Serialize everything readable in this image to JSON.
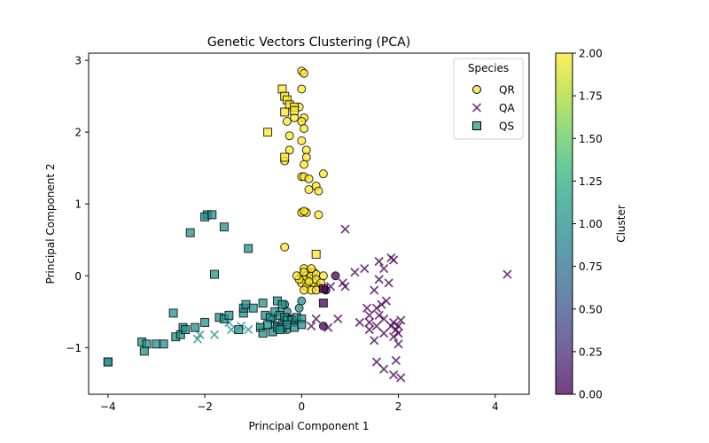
{
  "chart_data": {
    "type": "scatter",
    "title": "Genetic Vectors Clustering (PCA)",
    "xlabel": "Principal Component 1",
    "ylabel": "Principal Component 2",
    "xlim": [
      -4.4,
      4.7
    ],
    "ylim": [
      -1.65,
      3.1
    ],
    "xticks": [
      -4,
      -2,
      0,
      2,
      4
    ],
    "yticks": [
      -1,
      0,
      1,
      2,
      3
    ],
    "grid": false,
    "legend": {
      "title": "Species",
      "placement": "top-right",
      "entries": [
        "QR",
        "QA",
        "QS"
      ]
    },
    "colorbar": {
      "label": "Cluster",
      "range": [
        0,
        2
      ],
      "ticks": [
        "0.00",
        "0.25",
        "0.50",
        "0.75",
        "1.00",
        "1.25",
        "1.50",
        "1.75",
        "2.00"
      ],
      "colormap": [
        "#440154",
        "#482878",
        "#3e4a89",
        "#31688e",
        "#26828e",
        "#1f9e89",
        "#35b779",
        "#6ece58",
        "#b5de2b",
        "#fde725"
      ]
    },
    "series": [
      {
        "name": "QR",
        "marker": "circle",
        "points": [
          [
            0.0,
            2.85
          ],
          [
            0.05,
            2.82
          ],
          [
            0.0,
            2.6
          ],
          [
            -0.05,
            2.35
          ],
          [
            0.05,
            2.2
          ],
          [
            -0.15,
            2.2
          ],
          [
            0.0,
            2.15
          ],
          [
            -0.3,
            2.15
          ],
          [
            0.05,
            2.05
          ],
          [
            -0.25,
            1.95
          ],
          [
            0.0,
            1.88
          ],
          [
            0.1,
            1.75
          ],
          [
            -0.25,
            1.75
          ],
          [
            0.1,
            1.65
          ],
          [
            0.05,
            1.55
          ],
          [
            -0.35,
            1.6
          ],
          [
            0.0,
            1.38
          ],
          [
            0.05,
            1.38
          ],
          [
            0.15,
            1.35
          ],
          [
            0.45,
            1.42
          ],
          [
            0.3,
            1.25
          ],
          [
            0.15,
            1.2
          ],
          [
            0.35,
            1.18
          ],
          [
            0.0,
            0.88
          ],
          [
            0.1,
            0.88
          ],
          [
            0.05,
            0.9
          ],
          [
            0.35,
            0.85
          ],
          [
            -0.35,
            0.4
          ],
          [
            0.05,
            0.1
          ],
          [
            0.15,
            0.05
          ],
          [
            0.25,
            0.05
          ],
          [
            0.0,
            0.0
          ],
          [
            0.1,
            0.0
          ],
          [
            0.2,
            0.0
          ],
          [
            0.3,
            0.02
          ],
          [
            0.05,
            -0.05
          ],
          [
            0.15,
            -0.1
          ],
          [
            0.25,
            -0.1
          ],
          [
            0.0,
            -0.1
          ],
          [
            0.1,
            -0.15
          ],
          [
            -0.05,
            -0.05
          ],
          [
            0.2,
            -0.2
          ],
          [
            0.35,
            -0.15
          ],
          [
            0.05,
            -0.2
          ],
          [
            0.3,
            -0.05
          ],
          [
            0.45,
            0.0
          ],
          [
            0.4,
            -0.1
          ],
          [
            -0.1,
            0.0
          ],
          [
            0.05,
            0.05
          ],
          [
            0.2,
            0.1
          ],
          [
            0.3,
            -0.2
          ],
          [
            0.15,
            -0.08
          ],
          [
            -0.6,
            -0.6
          ],
          [
            -0.5,
            -0.7
          ],
          [
            -0.3,
            -0.5
          ],
          [
            -0.35,
            -0.4
          ],
          [
            -0.2,
            -0.6
          ],
          [
            -0.3,
            -0.75
          ],
          [
            -0.05,
            -0.45
          ],
          [
            -0.15,
            -0.65
          ],
          [
            -0.4,
            -0.65
          ],
          [
            0.0,
            -0.35
          ],
          [
            0.45,
            -0.7
          ],
          [
            0.7,
            0.0
          ],
          [
            0.5,
            -0.2
          ]
        ],
        "cluster": [
          2,
          2,
          2,
          2,
          2,
          2,
          2,
          2,
          2,
          2,
          2,
          2,
          2,
          2,
          2,
          2,
          2,
          2,
          2,
          2,
          2,
          2,
          2,
          2,
          2,
          2,
          2,
          2,
          2,
          2,
          2,
          2,
          2,
          2,
          2,
          2,
          2,
          2,
          2,
          2,
          2,
          2,
          2,
          2,
          2,
          2,
          2,
          2,
          2,
          2,
          2,
          2,
          1,
          1,
          1,
          1,
          1,
          1,
          1,
          1,
          1,
          1,
          0,
          0,
          0
        ]
      },
      {
        "name": "QA",
        "marker": "x",
        "points": [
          [
            0.9,
            0.65
          ],
          [
            4.25,
            0.02
          ],
          [
            1.85,
            0.25
          ],
          [
            1.9,
            0.22
          ],
          [
            1.6,
            0.2
          ],
          [
            1.3,
            0.1
          ],
          [
            1.1,
            0.05
          ],
          [
            1.7,
            0.1
          ],
          [
            1.6,
            -0.05
          ],
          [
            1.8,
            -0.1
          ],
          [
            0.85,
            -0.1
          ],
          [
            0.9,
            -0.15
          ],
          [
            0.6,
            -0.15
          ],
          [
            1.5,
            -0.2
          ],
          [
            1.75,
            -0.35
          ],
          [
            1.65,
            -0.4
          ],
          [
            1.55,
            -0.45
          ],
          [
            1.35,
            -0.45
          ],
          [
            1.4,
            -0.55
          ],
          [
            1.4,
            -0.65
          ],
          [
            1.6,
            -0.55
          ],
          [
            1.7,
            -0.6
          ],
          [
            1.85,
            -0.7
          ],
          [
            1.9,
            -0.65
          ],
          [
            2.0,
            -0.7
          ],
          [
            2.05,
            -0.62
          ],
          [
            1.95,
            -0.75
          ],
          [
            2.0,
            -0.8
          ],
          [
            1.9,
            -0.85
          ],
          [
            1.7,
            -0.8
          ],
          [
            1.55,
            -0.7
          ],
          [
            1.2,
            -0.65
          ],
          [
            1.5,
            -0.9
          ],
          [
            2.0,
            -0.95
          ],
          [
            1.55,
            -1.2
          ],
          [
            1.95,
            -1.18
          ],
          [
            1.7,
            -1.3
          ],
          [
            1.9,
            -1.38
          ],
          [
            2.05,
            -1.42
          ],
          [
            1.4,
            -0.75
          ],
          [
            0.75,
            -0.6
          ],
          [
            0.55,
            -0.72
          ],
          [
            0.3,
            -0.6
          ],
          [
            0.2,
            -0.7
          ],
          [
            -0.45,
            -0.5
          ],
          [
            -0.6,
            -0.7
          ],
          [
            -0.85,
            -0.7
          ],
          [
            -1.1,
            -0.75
          ],
          [
            -1.25,
            -0.7
          ],
          [
            -1.45,
            -0.75
          ],
          [
            -1.8,
            -0.82
          ],
          [
            -2.1,
            -0.82
          ],
          [
            -2.15,
            -0.88
          ],
          [
            -1.5,
            -0.65
          ]
        ],
        "cluster": [
          0,
          0,
          0,
          0,
          0,
          0,
          0,
          0,
          0,
          0,
          0,
          0,
          0,
          0,
          0,
          0,
          0,
          0,
          0,
          0,
          0,
          0,
          0,
          0,
          0,
          0,
          0,
          0,
          0,
          0,
          0,
          0,
          0,
          0,
          0,
          0,
          0,
          0,
          0,
          0,
          0,
          0,
          0,
          0,
          1,
          1,
          1,
          1,
          1,
          1,
          1,
          1,
          1,
          1
        ]
      },
      {
        "name": "QS",
        "marker": "square",
        "points": [
          [
            -0.4,
            2.6
          ],
          [
            -0.35,
            2.5
          ],
          [
            -0.3,
            2.45
          ],
          [
            -0.25,
            2.38
          ],
          [
            -0.15,
            2.35
          ],
          [
            -0.15,
            2.3
          ],
          [
            -0.35,
            2.28
          ],
          [
            -0.7,
            2.0
          ],
          [
            -0.35,
            1.65
          ],
          [
            0.3,
            0.3
          ],
          [
            0.45,
            -0.38
          ],
          [
            0.45,
            -0.18
          ],
          [
            -1.95,
            0.85
          ],
          [
            -2.0,
            0.82
          ],
          [
            -1.85,
            0.85
          ],
          [
            -1.6,
            0.68
          ],
          [
            -2.3,
            0.6
          ],
          [
            -1.1,
            0.38
          ],
          [
            -1.8,
            0.02
          ],
          [
            -4.0,
            -1.2
          ],
          [
            -4.0,
            -1.2
          ],
          [
            -3.3,
            -0.92
          ],
          [
            -3.2,
            -0.95
          ],
          [
            -3.25,
            -1.05
          ],
          [
            -3.0,
            -0.95
          ],
          [
            -2.85,
            -0.95
          ],
          [
            -2.6,
            -0.85
          ],
          [
            -2.5,
            -0.82
          ],
          [
            -2.45,
            -0.72
          ],
          [
            -2.2,
            -0.72
          ],
          [
            -2.4,
            -0.75
          ],
          [
            -2.65,
            -0.52
          ],
          [
            -2.0,
            -0.65
          ],
          [
            -1.7,
            -0.58
          ],
          [
            -1.6,
            -0.6
          ],
          [
            -1.5,
            -0.55
          ],
          [
            -1.3,
            -0.75
          ],
          [
            -1.2,
            -0.52
          ],
          [
            -1.2,
            -0.45
          ],
          [
            -1.15,
            -0.4
          ],
          [
            -1.0,
            -0.45
          ],
          [
            -0.8,
            -0.38
          ],
          [
            -0.5,
            -0.35
          ],
          [
            -0.4,
            -0.4
          ],
          [
            -0.75,
            -0.55
          ],
          [
            -0.65,
            -0.58
          ],
          [
            -0.55,
            -0.5
          ],
          [
            -0.45,
            -0.55
          ],
          [
            -0.35,
            -0.58
          ],
          [
            -0.3,
            -0.62
          ],
          [
            -0.2,
            -0.62
          ],
          [
            -0.1,
            -0.58
          ],
          [
            0.0,
            -0.6
          ],
          [
            -0.85,
            -0.72
          ],
          [
            -0.8,
            -0.8
          ],
          [
            -0.6,
            -0.78
          ],
          [
            -0.5,
            -0.72
          ],
          [
            -0.4,
            -0.72
          ],
          [
            -0.3,
            -0.68
          ],
          [
            -0.15,
            -0.72
          ],
          [
            -0.45,
            -0.75
          ],
          [
            0.0,
            -0.68
          ],
          [
            -0.7,
            -0.68
          ]
        ],
        "cluster": [
          2,
          2,
          2,
          2,
          2,
          2,
          2,
          2,
          2,
          2,
          0,
          0,
          1,
          1,
          1,
          1,
          1,
          1,
          1,
          1,
          1,
          1,
          1,
          1,
          1,
          1,
          1,
          1,
          1,
          1,
          1,
          1,
          1,
          1,
          1,
          1,
          1,
          1,
          1,
          1,
          1,
          1,
          1,
          1,
          1,
          1,
          1,
          1,
          1,
          1,
          1,
          1,
          1,
          1,
          1,
          1,
          1,
          1,
          1,
          1,
          1,
          1,
          1,
          1
        ]
      }
    ]
  }
}
